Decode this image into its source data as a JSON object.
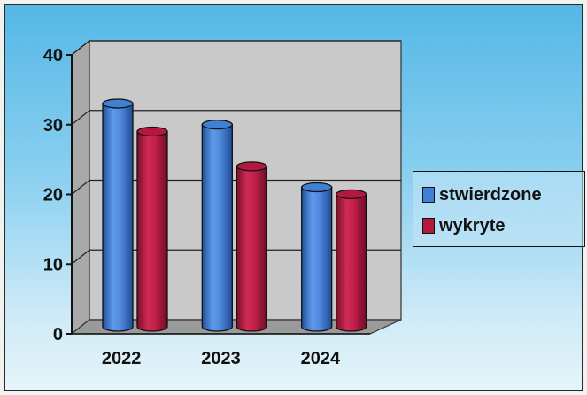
{
  "chart_data": {
    "type": "bar",
    "categories": [
      "2022",
      "2023",
      "2024"
    ],
    "series": [
      {
        "name": "stwierdzone",
        "values": [
          32,
          29,
          20
        ],
        "color": "#3f7fd4"
      },
      {
        "name": "wykryte",
        "values": [
          28,
          23,
          19
        ],
        "color": "#b5183f"
      }
    ],
    "y_ticks": [
      "0",
      "10",
      "20",
      "30",
      "40"
    ],
    "ylim": [
      0,
      40
    ],
    "grid": true,
    "legend_position": "right",
    "colors": {
      "plot_wall": "#c9c9c9",
      "floor": "#9a9a9a",
      "background_top": "#55b7e6",
      "background_bottom": "#e6f4fa"
    }
  }
}
